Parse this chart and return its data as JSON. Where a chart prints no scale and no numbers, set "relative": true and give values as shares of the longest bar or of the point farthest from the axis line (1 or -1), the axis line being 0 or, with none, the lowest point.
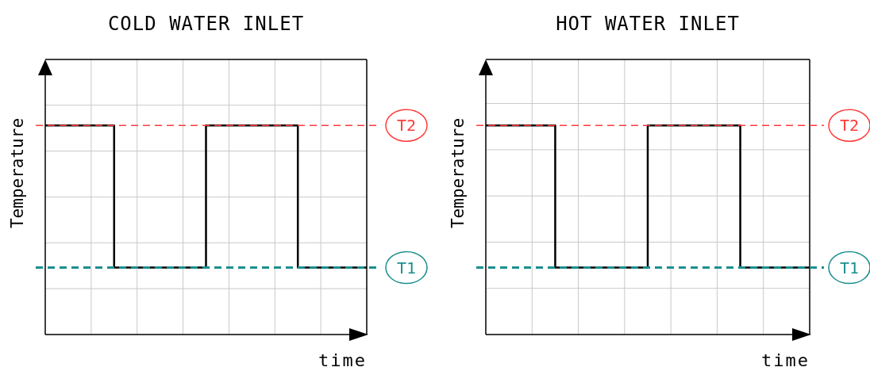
{
  "chart_data": [
    {
      "type": "step",
      "title": "COLD WATER INLET",
      "xlabel": "time",
      "ylabel": "Temperature",
      "relative": true,
      "grid": true,
      "categories": [
        null,
        null,
        null,
        null,
        null,
        null,
        null,
        null,
        null,
        null,
        null,
        null,
        null,
        null,
        null
      ],
      "series": [
        {
          "color": "#000000",
          "values": [
            1,
            1,
            1,
            0.32,
            0.32,
            0.32,
            0.32,
            1,
            1,
            1,
            1,
            0.32,
            0.32,
            0.32,
            0.32
          ]
        }
      ],
      "ref_lines": [
        {
          "axis": "y",
          "value": 1,
          "label": "T2",
          "color": "#ff3b3b",
          "line_style": "dashed"
        },
        {
          "axis": "y",
          "value": 0.32,
          "label": "T1",
          "color": "#1a8f8f",
          "line_style": "dashed"
        }
      ]
    },
    {
      "type": "step",
      "title": "HOT WATER INLET",
      "xlabel": "time",
      "ylabel": "Temperature",
      "relative": true,
      "grid": true,
      "categories": [
        null,
        null,
        null,
        null,
        null,
        null,
        null,
        null,
        null,
        null,
        null,
        null,
        null,
        null,
        null
      ],
      "series": [
        {
          "color": "#000000",
          "values": [
            1,
            1,
            1,
            0.32,
            0.32,
            0.32,
            0.32,
            1,
            1,
            1,
            1,
            0.32,
            0.32,
            0.32,
            0.32
          ]
        }
      ],
      "ref_lines": [
        {
          "axis": "y",
          "value": 1,
          "label": "T2",
          "color": "#ff3b3b",
          "line_style": "dashed"
        },
        {
          "axis": "y",
          "value": 0.32,
          "label": "T1",
          "color": "#1a8f8f",
          "line_style": "dashed"
        }
      ]
    }
  ]
}
